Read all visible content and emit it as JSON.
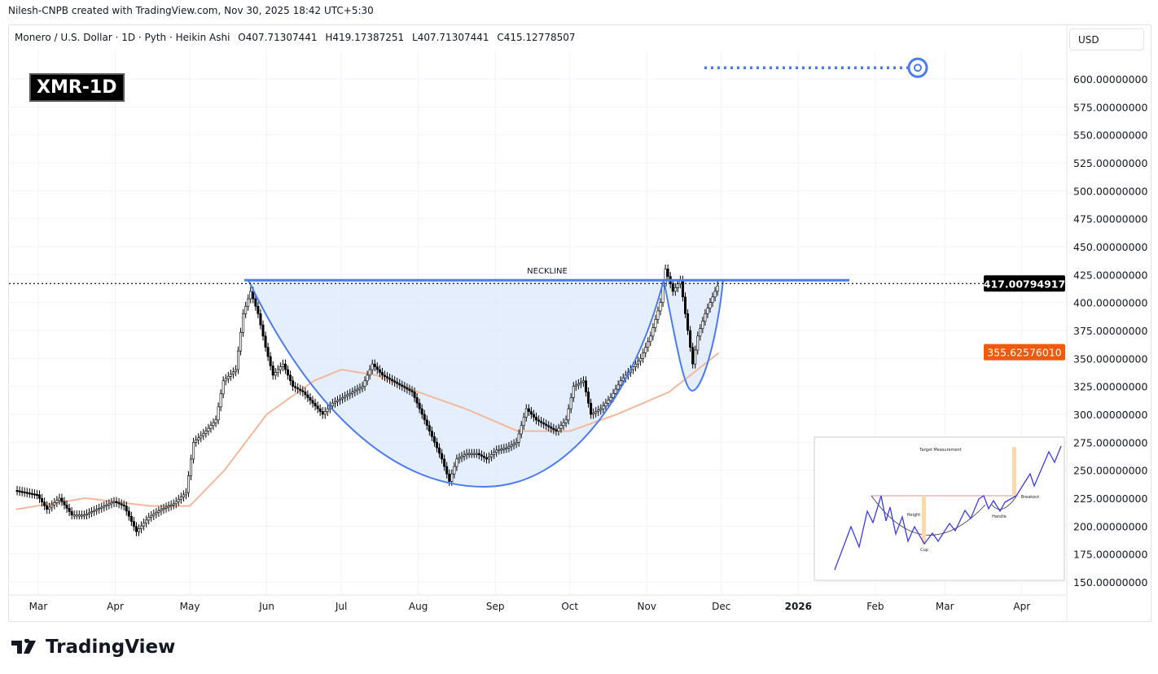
{
  "credit": "Nilesh-CNPB created with TradingView.com, Nov 30, 2025 18:42 UTC+5:30",
  "legend": {
    "symbol": "Monero / U.S. Dollar · 1D · Pyth · Heikin Ashi",
    "open": "O407.71307441",
    "high": "H419.17387251",
    "low": "L407.71307441",
    "close": "C415.12778507"
  },
  "currency": "USD",
  "symbol_badge": "XMR-1D",
  "brand": "TradingView",
  "colors": {
    "up": "#ffffff",
    "down": "#000000",
    "ma": "#f4b89c",
    "pattern": "#4a7cf0",
    "fill": "#dbe8fb",
    "ma_label": "#f05a0a"
  },
  "chart_data": {
    "type": "candlestick",
    "title": "",
    "ylim": [
      140,
      640
    ],
    "grid": true,
    "yticks": [
      "150.00000000",
      "175.00000000",
      "200.00000000",
      "225.00000000",
      "250.00000000",
      "275.00000000",
      "300.00000000",
      "325.00000000",
      "350.00000000",
      "375.00000000",
      "400.00000000",
      "425.00000000",
      "450.00000000",
      "475.00000000",
      "500.00000000",
      "525.00000000",
      "550.00000000",
      "575.00000000",
      "600.00000000"
    ],
    "xticks": [
      "Mar",
      "Apr",
      "May",
      "Jun",
      "Jul",
      "Aug",
      "Sep",
      "Oct",
      "Nov",
      "Dec",
      "2026",
      "Feb",
      "Mar",
      "Apr"
    ],
    "price": {
      "dates": [
        "2025-02-20",
        "2025-03-01",
        "2025-03-05",
        "2025-03-10",
        "2025-03-15",
        "2025-03-20",
        "2025-03-25",
        "2025-04-01",
        "2025-04-05",
        "2025-04-10",
        "2025-04-15",
        "2025-04-20",
        "2025-04-25",
        "2025-04-30",
        "2025-05-03",
        "2025-05-08",
        "2025-05-12",
        "2025-05-15",
        "2025-05-20",
        "2025-05-23",
        "2025-05-26",
        "2025-05-29",
        "2025-06-01",
        "2025-06-04",
        "2025-06-08",
        "2025-06-12",
        "2025-06-16",
        "2025-06-20",
        "2025-06-24",
        "2025-06-28",
        "2025-07-02",
        "2025-07-06",
        "2025-07-10",
        "2025-07-14",
        "2025-07-18",
        "2025-07-22",
        "2025-07-26",
        "2025-07-30",
        "2025-08-03",
        "2025-08-07",
        "2025-08-11",
        "2025-08-14",
        "2025-08-17",
        "2025-08-21",
        "2025-08-25",
        "2025-08-29",
        "2025-09-02",
        "2025-09-06",
        "2025-09-10",
        "2025-09-14",
        "2025-09-18",
        "2025-09-22",
        "2025-09-26",
        "2025-09-30",
        "2025-10-03",
        "2025-10-07",
        "2025-10-10",
        "2025-10-14",
        "2025-10-18",
        "2025-10-22",
        "2025-10-26",
        "2025-10-30",
        "2025-11-03",
        "2025-11-07",
        "2025-11-09",
        "2025-11-12",
        "2025-11-15",
        "2025-11-18",
        "2025-11-20",
        "2025-11-22",
        "2025-11-25",
        "2025-11-28",
        "2025-11-30"
      ],
      "close": [
        232,
        228,
        215,
        225,
        210,
        210,
        215,
        222,
        218,
        195,
        208,
        215,
        220,
        230,
        275,
        285,
        295,
        330,
        340,
        390,
        410,
        390,
        360,
        335,
        345,
        325,
        320,
        310,
        300,
        310,
        315,
        320,
        325,
        345,
        335,
        330,
        325,
        320,
        300,
        280,
        260,
        240,
        260,
        265,
        265,
        260,
        268,
        270,
        275,
        305,
        295,
        290,
        285,
        295,
        325,
        330,
        300,
        305,
        315,
        330,
        340,
        350,
        370,
        400,
        430,
        410,
        420,
        375,
        345,
        370,
        390,
        405,
        415
      ]
    },
    "moving_average": {
      "dates": [
        "2025-02-20",
        "2025-03-20",
        "2025-04-15",
        "2025-05-01",
        "2025-05-15",
        "2025-06-01",
        "2025-06-20",
        "2025-07-01",
        "2025-07-15",
        "2025-08-01",
        "2025-08-20",
        "2025-09-10",
        "2025-10-01",
        "2025-10-20",
        "2025-11-10",
        "2025-11-30"
      ],
      "values": [
        215,
        225,
        218,
        218,
        250,
        300,
        330,
        340,
        335,
        320,
        305,
        285,
        285,
        300,
        320,
        355
      ]
    },
    "last_price": "417.00794917",
    "ma_last": "355.62576010",
    "neckline": {
      "label": "NECKLINE",
      "price": 420
    },
    "target_price": 610
  },
  "inset": {
    "target": "Target Measurement",
    "height": "Height",
    "cup": "Cup",
    "handle": "Handle",
    "breakout": "Breakout"
  }
}
